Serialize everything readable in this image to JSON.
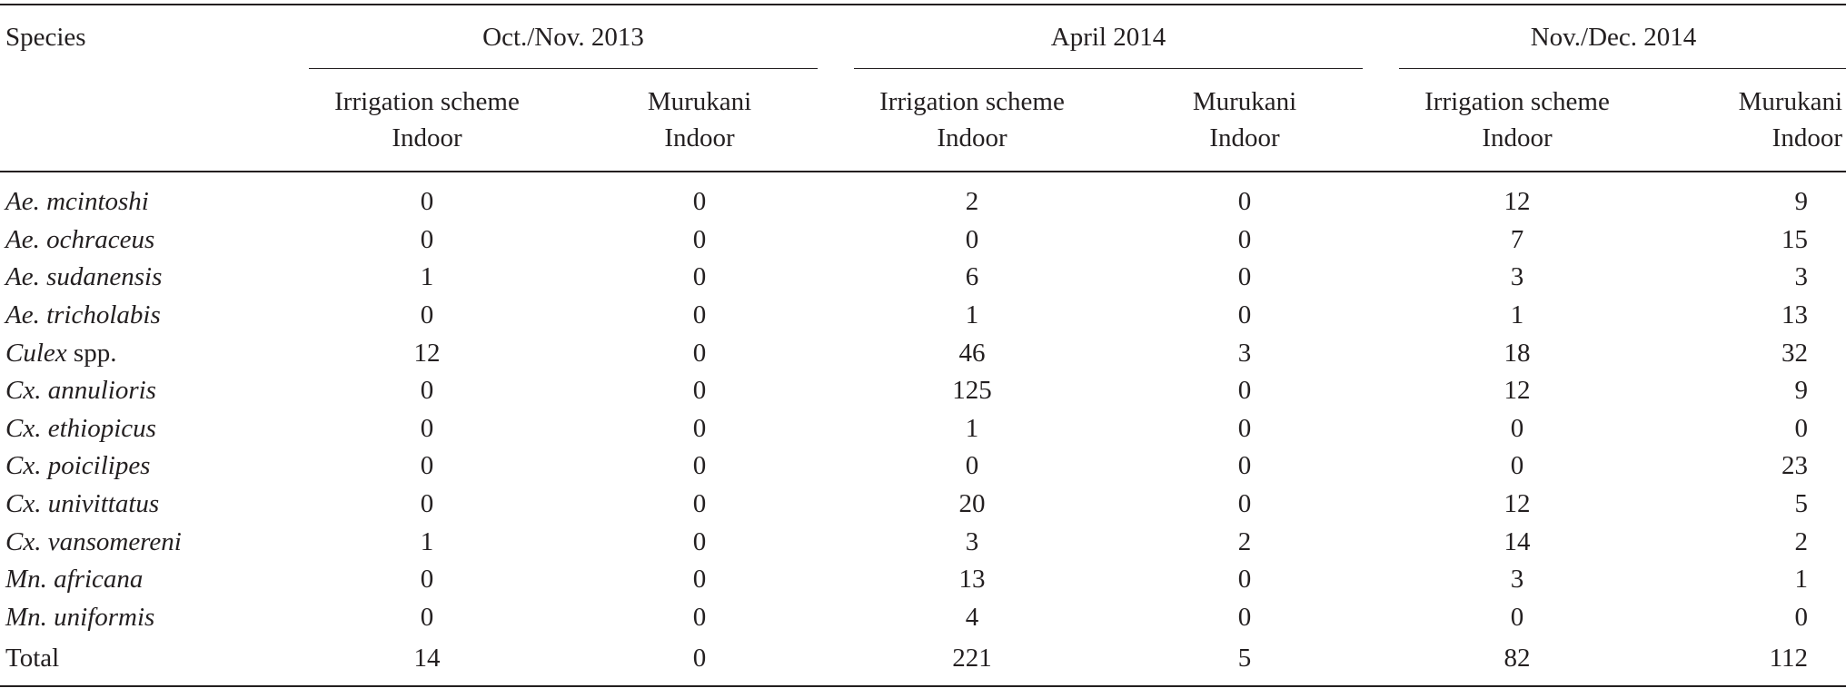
{
  "table": {
    "species_header": "Species",
    "groups": [
      {
        "label": "Oct./Nov. 2013"
      },
      {
        "label": "April 2014"
      },
      {
        "label": "Nov./Dec. 2014"
      }
    ],
    "subheaders": [
      {
        "line1": "Irrigation scheme",
        "line2": "Indoor"
      },
      {
        "line1": "Murukani",
        "line2": "Indoor"
      },
      {
        "line1": "Irrigation scheme",
        "line2": "Indoor"
      },
      {
        "line1": "Murukani",
        "line2": "Indoor"
      },
      {
        "line1": "Irrigation scheme",
        "line2": "Indoor"
      },
      {
        "line1": "Murukani",
        "line2": "Indoor"
      }
    ],
    "rows": [
      {
        "name_italic": "Ae. mcintoshi",
        "name_plain": "",
        "values": [
          "0",
          "0",
          "2",
          "0",
          "12",
          "9"
        ]
      },
      {
        "name_italic": "Ae. ochraceus",
        "name_plain": "",
        "values": [
          "0",
          "0",
          "0",
          "0",
          "7",
          "15"
        ]
      },
      {
        "name_italic": "Ae. sudanensis",
        "name_plain": "",
        "values": [
          "1",
          "0",
          "6",
          "0",
          "3",
          "3"
        ]
      },
      {
        "name_italic": "Ae. tricholabis",
        "name_plain": "",
        "values": [
          "0",
          "0",
          "1",
          "0",
          "1",
          "13"
        ]
      },
      {
        "name_italic": "Culex",
        "name_plain": " spp.",
        "values": [
          "12",
          "0",
          "46",
          "3",
          "18",
          "32"
        ]
      },
      {
        "name_italic": "Cx. annulioris",
        "name_plain": "",
        "values": [
          "0",
          "0",
          "125",
          "0",
          "12",
          "9"
        ]
      },
      {
        "name_italic": "Cx. ethiopicus",
        "name_plain": "",
        "values": [
          "0",
          "0",
          "1",
          "0",
          "0",
          "0"
        ]
      },
      {
        "name_italic": "Cx. poicilipes",
        "name_plain": "",
        "values": [
          "0",
          "0",
          "0",
          "0",
          "0",
          "23"
        ]
      },
      {
        "name_italic": "Cx. univittatus",
        "name_plain": "",
        "values": [
          "0",
          "0",
          "20",
          "0",
          "12",
          "5"
        ]
      },
      {
        "name_italic": "Cx. vansomereni",
        "name_plain": "",
        "values": [
          "1",
          "0",
          "3",
          "2",
          "14",
          "2"
        ]
      },
      {
        "name_italic": "Mn. africana",
        "name_plain": "",
        "values": [
          "0",
          "0",
          "13",
          "0",
          "3",
          "1"
        ]
      },
      {
        "name_italic": "Mn. uniformis",
        "name_plain": "",
        "values": [
          "0",
          "0",
          "4",
          "0",
          "0",
          "0"
        ]
      }
    ],
    "total": {
      "label": "Total",
      "values": [
        "14",
        "0",
        "221",
        "5",
        "82",
        "112"
      ]
    }
  }
}
